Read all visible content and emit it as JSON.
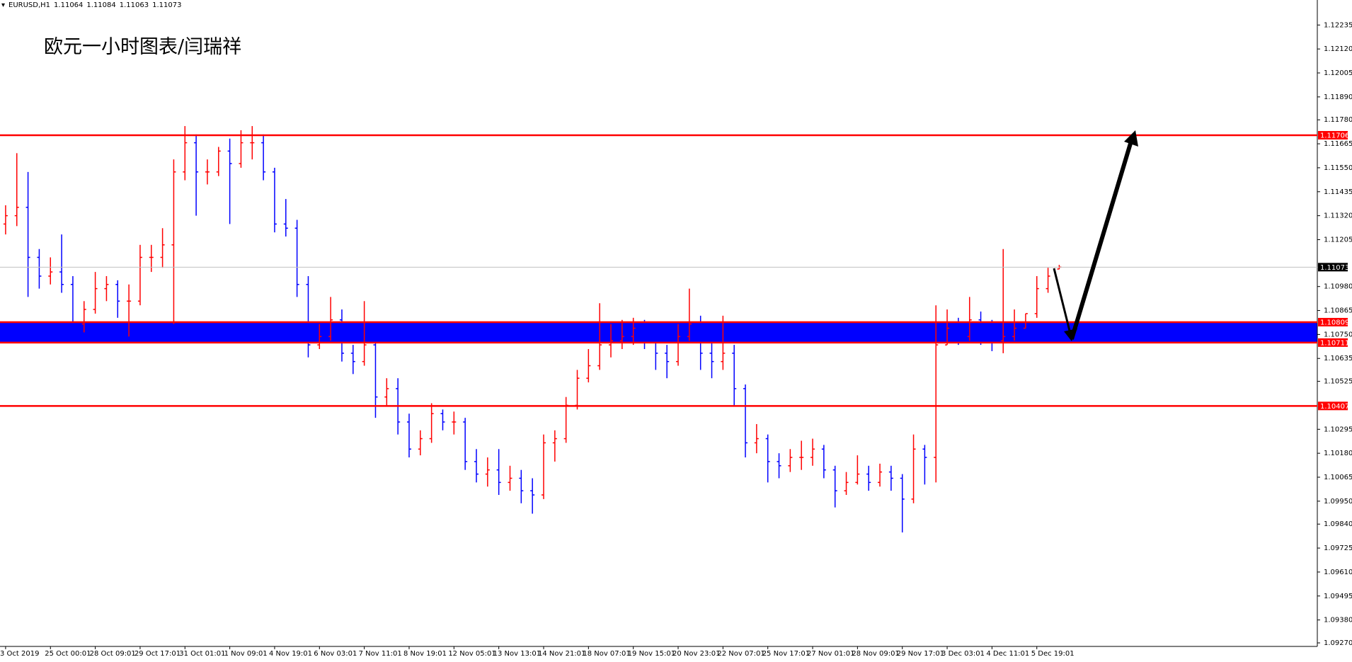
{
  "chart_data": {
    "type": "ohlc",
    "title": "欧元一小时图表/闫瑞祥",
    "symbol": "EURUSD,H1",
    "up_color": "#ff0000",
    "down_color": "#0000ff",
    "level_color": "#ff0000",
    "price_line_color": "#c0c0c0",
    "ylim": [
      1.09253,
      1.12355
    ],
    "yticks": [
      1.12235,
      {
        "value": 1.1212,
        "label": "1.12120"
      },
      1.12005,
      {
        "value": 1.1189,
        "label": "1.11890"
      },
      {
        "value": 1.1178,
        "label": "1.11780"
      },
      1.11665,
      {
        "value": 1.1155,
        "label": "1.11550"
      },
      1.11435,
      {
        "value": 1.1132,
        "label": "1.11320"
      },
      1.11205,
      {
        "value": 1.1098,
        "label": "1.10980"
      },
      1.10865,
      {
        "value": 1.1075,
        "label": "1.10750"
      },
      1.10635,
      1.10525,
      1.10295,
      {
        "value": 1.1018,
        "label": "1.10180"
      },
      1.10065,
      {
        "value": 1.0995,
        "label": "1.09950"
      },
      {
        "value": 1.0984,
        "label": "1.09840"
      },
      1.09725,
      {
        "value": 1.0961,
        "label": "1.09610"
      },
      1.09495,
      {
        "value": 1.0938,
        "label": "1.09380"
      },
      {
        "value": 1.0927,
        "label": "1.09270"
      }
    ],
    "levels": [
      1.11706,
      1.10407
    ],
    "zone": {
      "range": [
        1.10809,
        1.10711
      ],
      "color": "#0000ff"
    },
    "categories": [
      "3 Oct 2019",
      null,
      null,
      null,
      "25 Oct 00:01",
      null,
      null,
      null,
      "28 Oct 09:01",
      null,
      null,
      null,
      "29 Oct 17:01",
      null,
      null,
      null,
      "31 Oct 01:01",
      null,
      null,
      null,
      "1 Nov 09:01",
      null,
      null,
      null,
      "4 Nov 19:01",
      null,
      null,
      null,
      "6 Nov 03:01",
      null,
      null,
      null,
      "7 Nov 11:01",
      null,
      null,
      null,
      "8 Nov 19:01",
      null,
      null,
      null,
      "12 Nov 05:01",
      null,
      null,
      null,
      "13 Nov 13:01",
      null,
      null,
      null,
      "14 Nov 21:01",
      null,
      null,
      null,
      "18 Nov 07:01",
      null,
      null,
      null,
      "19 Nov 15:01",
      null,
      null,
      null,
      "20 Nov 23:01",
      null,
      null,
      null,
      "22 Nov 07:01",
      null,
      null,
      null,
      "25 Nov 17:01",
      null,
      null,
      null,
      "27 Nov 01:01",
      null,
      null,
      null,
      "28 Nov 09:01",
      null,
      null,
      null,
      "29 Nov 17:01",
      null,
      null,
      null,
      "3 Dec 03:01",
      null,
      null,
      null,
      "4 Dec 11:01",
      null,
      null,
      null,
      "5 Dec 19:01",
      null,
      null
    ],
    "ohlc": [
      [
        1.1128,
        1.1137,
        1.1123,
        1.1132
      ],
      [
        1.1132,
        1.1162,
        1.1127,
        1.1136
      ],
      [
        1.1136,
        1.1153,
        1.1093,
        1.1112
      ],
      [
        1.1112,
        1.1116,
        1.1097,
        1.1103
      ],
      [
        1.1103,
        1.1112,
        1.1099,
        1.1105
      ],
      [
        1.1105,
        1.1123,
        1.1095,
        1.1099
      ],
      [
        1.1099,
        1.1103,
        1.1072,
        1.108
      ],
      [
        1.108,
        1.1091,
        1.1076,
        1.1087
      ],
      [
        1.1087,
        1.1105,
        1.1085,
        1.1097
      ],
      [
        1.1097,
        1.1103,
        1.1091,
        1.1099
      ],
      [
        1.1099,
        1.1101,
        1.1083,
        1.1091
      ],
      [
        1.1091,
        1.1099,
        1.1074,
        1.1091
      ],
      [
        1.1091,
        1.1118,
        1.1089,
        1.1112
      ],
      [
        1.1112,
        1.1118,
        1.1105,
        1.1112
      ],
      [
        1.1112,
        1.1126,
        1.1107,
        1.1118
      ],
      [
        1.1118,
        1.1159,
        1.108,
        1.1153
      ],
      [
        1.1153,
        1.1175,
        1.1149,
        1.1167
      ],
      [
        1.1167,
        1.1171,
        1.1132,
        1.1153
      ],
      [
        1.1153,
        1.1159,
        1.1147,
        1.1153
      ],
      [
        1.1153,
        1.1165,
        1.1151,
        1.1163
      ],
      [
        1.1163,
        1.1169,
        1.1128,
        1.1157
      ],
      [
        1.1157,
        1.1173,
        1.1155,
        1.1167
      ],
      [
        1.1167,
        1.1175,
        1.1159,
        1.1167
      ],
      [
        1.1167,
        1.1171,
        1.1149,
        1.1153
      ],
      [
        1.1153,
        1.1155,
        1.1124,
        1.1128
      ],
      [
        1.1128,
        1.114,
        1.1122,
        1.1126
      ],
      [
        1.1126,
        1.113,
        1.1093,
        1.1099
      ],
      [
        1.1099,
        1.1103,
        1.1064,
        1.107
      ],
      [
        1.107,
        1.108,
        1.1068,
        1.1074
      ],
      [
        1.1074,
        1.1093,
        1.1072,
        1.1082
      ],
      [
        1.1082,
        1.1087,
        1.1062,
        1.1066
      ],
      [
        1.1066,
        1.107,
        1.1056,
        1.1062
      ],
      [
        1.1062,
        1.1091,
        1.106,
        1.107
      ],
      [
        1.107,
        1.1072,
        1.1035,
        1.1045
      ],
      [
        1.1045,
        1.1054,
        1.1041,
        1.1049
      ],
      [
        1.1049,
        1.1054,
        1.1027,
        1.1033
      ],
      [
        1.1033,
        1.1037,
        1.1016,
        1.102
      ],
      [
        1.102,
        1.1029,
        1.1017,
        1.1025
      ],
      [
        1.1025,
        1.1042,
        1.1023,
        1.1037
      ],
      [
        1.1037,
        1.1039,
        1.1029,
        1.1033
      ],
      [
        1.1033,
        1.1038,
        1.1027,
        1.1033
      ],
      [
        1.1033,
        1.1035,
        1.101,
        1.1014
      ],
      [
        1.1014,
        1.102,
        1.1004,
        1.1008
      ],
      [
        1.1008,
        1.1016,
        1.1002,
        1.101
      ],
      [
        1.101,
        1.102,
        1.0998,
        1.1004
      ],
      [
        1.1004,
        1.1012,
        1.1,
        1.1006
      ],
      [
        1.1006,
        1.101,
        1.0994,
        1.1
      ],
      [
        1.1,
        1.1006,
        1.0989,
        1.0998
      ],
      [
        1.0998,
        1.1027,
        1.0996,
        1.1023
      ],
      [
        1.1023,
        1.1029,
        1.1014,
        1.1025
      ],
      [
        1.1025,
        1.1045,
        1.1023,
        1.1041
      ],
      [
        1.1041,
        1.1058,
        1.1039,
        1.1054
      ],
      [
        1.1054,
        1.1068,
        1.1052,
        1.106
      ],
      [
        1.106,
        1.109,
        1.1058,
        1.107
      ],
      [
        1.107,
        1.108,
        1.1064,
        1.1072
      ],
      [
        1.1072,
        1.1082,
        1.1068,
        1.1074
      ],
      [
        1.1074,
        1.1083,
        1.107,
        1.1078
      ],
      [
        1.1078,
        1.1082,
        1.1068,
        1.1074
      ],
      [
        1.1074,
        1.1076,
        1.1058,
        1.1066
      ],
      [
        1.1066,
        1.107,
        1.1054,
        1.1062
      ],
      [
        1.1062,
        1.108,
        1.106,
        1.1074
      ],
      [
        1.1074,
        1.1097,
        1.1072,
        1.108
      ],
      [
        1.108,
        1.1084,
        1.1058,
        1.1066
      ],
      [
        1.1066,
        1.1072,
        1.1054,
        1.1062
      ],
      [
        1.1062,
        1.1084,
        1.1058,
        1.1066
      ],
      [
        1.1066,
        1.107,
        1.1041,
        1.1049
      ],
      [
        1.1049,
        1.1051,
        1.1016,
        1.1023
      ],
      [
        1.1023,
        1.1032,
        1.1018,
        1.1025
      ],
      [
        1.1025,
        1.1027,
        1.1004,
        1.1014
      ],
      [
        1.1014,
        1.1018,
        1.1006,
        1.1012
      ],
      [
        1.1012,
        1.102,
        1.1009,
        1.1016
      ],
      [
        1.1016,
        1.1024,
        1.101,
        1.1016
      ],
      [
        1.1016,
        1.1025,
        1.1012,
        1.102
      ],
      [
        1.102,
        1.1022,
        1.1006,
        1.101
      ],
      [
        1.101,
        1.1012,
        1.0992,
        1.1
      ],
      [
        1.1,
        1.1009,
        1.0998,
        1.1004
      ],
      [
        1.1004,
        1.1017,
        1.1003,
        1.1008
      ],
      [
        1.1008,
        1.1012,
        1.1,
        1.1004
      ],
      [
        1.1004,
        1.1013,
        1.1002,
        1.1009
      ],
      [
        1.1009,
        1.1012,
        1.1,
        1.1006
      ],
      [
        1.1006,
        1.1008,
        1.098,
        1.0996
      ],
      [
        1.0996,
        1.1027,
        1.0994,
        1.102
      ],
      [
        1.102,
        1.1022,
        1.1003,
        1.1016
      ],
      [
        1.1016,
        1.1089,
        1.1004,
        1.107
      ],
      [
        1.107,
        1.1087,
        1.107,
        1.1078
      ],
      [
        1.1078,
        1.1083,
        1.107,
        1.1074
      ],
      [
        1.1074,
        1.1093,
        1.1072,
        1.1082
      ],
      [
        1.1082,
        1.1086,
        1.107,
        1.1076
      ],
      [
        1.1076,
        1.1082,
        1.1067,
        1.1072
      ],
      [
        1.1072,
        1.1116,
        1.1066,
        1.1074
      ],
      [
        1.1074,
        1.1087,
        1.1072,
        1.1078
      ],
      [
        1.1078,
        1.1085,
        1.1078,
        1.1085
      ],
      [
        1.1085,
        1.1103,
        1.1083,
        1.1097
      ],
      [
        1.1097,
        1.1107,
        1.1095,
        1.1103
      ],
      [
        1.11064,
        1.11084,
        1.11063,
        1.11073
      ]
    ]
  }
}
